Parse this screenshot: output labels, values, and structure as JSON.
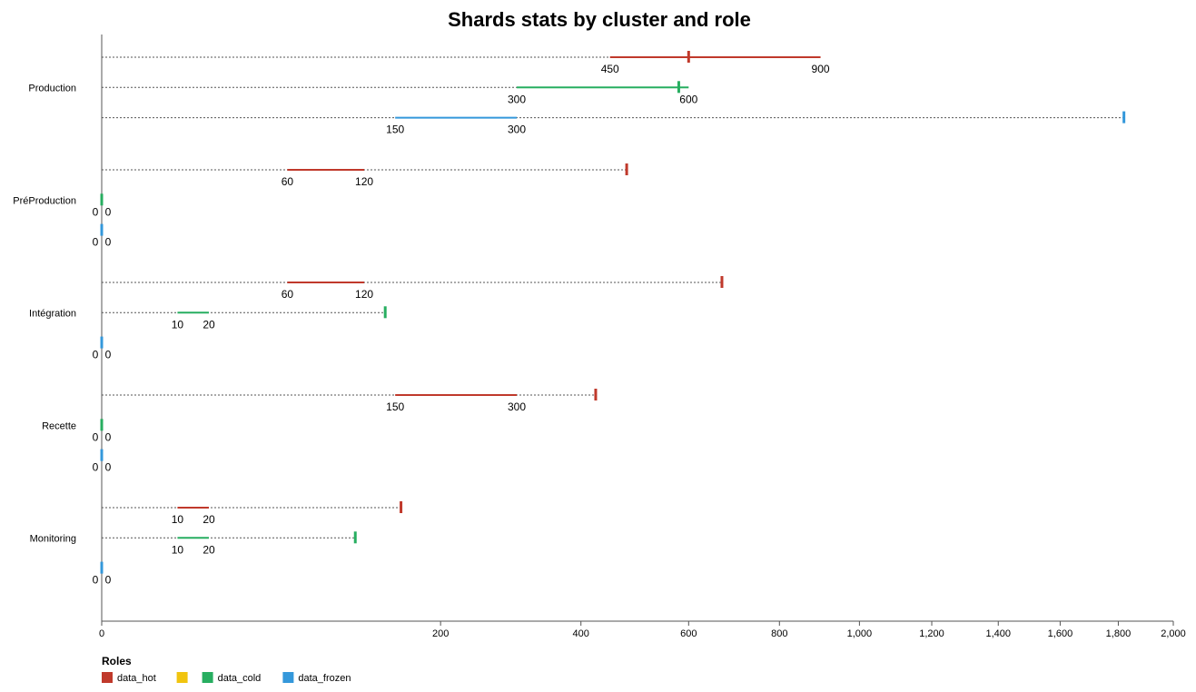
{
  "chart_data": {
    "type": "bullet",
    "title": "Shards stats by cluster and role",
    "xlim": [
      0,
      2000
    ],
    "x_ticks": [
      0,
      200,
      400,
      600,
      800,
      1000,
      1200,
      1400,
      1600,
      1800,
      2000
    ],
    "x_tick_labels": [
      "0",
      "200",
      "400",
      "600",
      "800",
      "1,000",
      "1,200",
      "1,400",
      "1,600",
      "1,800",
      "2,000"
    ],
    "x_scale": "sqrt",
    "grid": false,
    "legend_title": "Roles",
    "legend_placement": "bottom-left",
    "roles": [
      {
        "name": "data_hot",
        "color": "#c0392b"
      },
      {
        "name": "",
        "color": "#f1c40f"
      },
      {
        "name": "data_cold",
        "color": "#27ae60"
      },
      {
        "name": "data_frozen",
        "color": "#3498db"
      }
    ],
    "clusters": [
      {
        "name": "Production",
        "bullets": [
          {
            "role": "data_hot",
            "range": [
              450,
              900
            ],
            "range_labels": [
              "450",
              "900"
            ],
            "value": 600,
            "max": 900
          },
          {
            "role": "data_cold",
            "range": [
              300,
              600
            ],
            "range_labels": [
              "300",
              "600"
            ],
            "value": 580,
            "max": 600
          },
          {
            "role": "data_frozen",
            "range": [
              150,
              300
            ],
            "range_labels": [
              "150",
              "300"
            ],
            "value": 1820,
            "max": 1820
          }
        ]
      },
      {
        "name": "PréProduction",
        "bullets": [
          {
            "role": "data_hot",
            "range": [
              60,
              120
            ],
            "range_labels": [
              "60",
              "120"
            ],
            "value": 480,
            "max": 480
          },
          {
            "role": "data_cold",
            "range": [
              0,
              0
            ],
            "range_labels": [
              "0",
              "0"
            ],
            "value": 0,
            "max": 0
          },
          {
            "role": "data_frozen",
            "range": [
              0,
              0
            ],
            "range_labels": [
              "0",
              "0"
            ],
            "value": 0,
            "max": 0
          }
        ]
      },
      {
        "name": "Intégration",
        "bullets": [
          {
            "role": "data_hot",
            "range": [
              60,
              120
            ],
            "range_labels": [
              "60",
              "120"
            ],
            "value": 670,
            "max": 670
          },
          {
            "role": "data_cold",
            "range": [
              10,
              20
            ],
            "range_labels": [
              "10",
              "20"
            ],
            "value": 140,
            "max": 140
          },
          {
            "role": "data_frozen",
            "range": [
              0,
              0
            ],
            "range_labels": [
              "0",
              "0"
            ],
            "value": 0,
            "max": 0
          }
        ]
      },
      {
        "name": "Recette",
        "bullets": [
          {
            "role": "data_hot",
            "range": [
              150,
              300
            ],
            "range_labels": [
              "150",
              "300"
            ],
            "value": 425,
            "max": 425
          },
          {
            "role": "data_cold",
            "range": [
              0,
              0
            ],
            "range_labels": [
              "0",
              "0"
            ],
            "value": 0,
            "max": 0
          },
          {
            "role": "data_frozen",
            "range": [
              0,
              0
            ],
            "range_labels": [
              "0",
              "0"
            ],
            "value": 0,
            "max": 0
          }
        ]
      },
      {
        "name": "Monitoring",
        "bullets": [
          {
            "role": "data_hot",
            "range": [
              10,
              20
            ],
            "range_labels": [
              "10",
              "20"
            ],
            "value": 156,
            "max": 156
          },
          {
            "role": "data_cold",
            "range": [
              10,
              20
            ],
            "range_labels": [
              "10",
              "20"
            ],
            "value": 112,
            "max": 112
          },
          {
            "role": "data_frozen",
            "range": [
              0,
              0
            ],
            "range_labels": [
              "0",
              "0"
            ],
            "value": 0,
            "max": 0
          }
        ]
      }
    ]
  }
}
